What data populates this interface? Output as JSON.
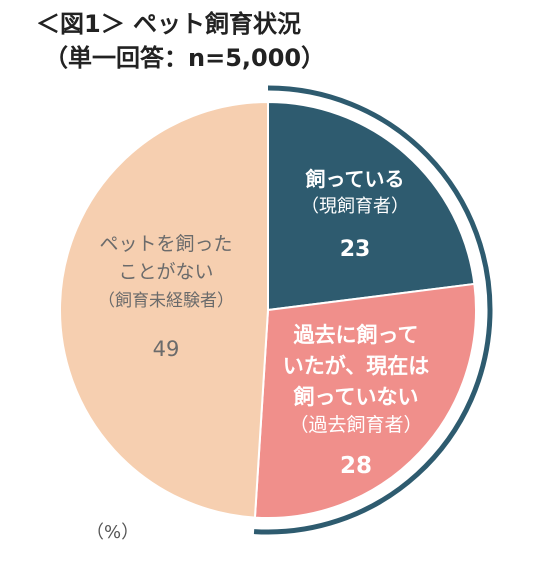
{
  "title": "＜図1＞ ペット飼育状況",
  "subtitle": "（単一回答：n=5,000）",
  "unit": "（%）",
  "chart_data": {
    "type": "pie",
    "title": "＜図1＞ ペット飼育状況",
    "subtitle": "（単一回答：n=5,000）",
    "unit": "%",
    "slices": [
      {
        "name": "飼っている（現飼育者）",
        "label_lines": [
          "飼っている"
        ],
        "sub_label": "（現飼育者）",
        "value": 23,
        "color": "#2e5b6f",
        "text_color": "#ffffff",
        "bold": true
      },
      {
        "name": "過去に飼っていたが、現在は飼っていない（過去飼育者）",
        "label_lines": [
          "過去に飼って",
          "いたが、現在は",
          "飼っていない"
        ],
        "sub_label": "（過去飼育者）",
        "value": 28,
        "color": "#f08f8b",
        "text_color": "#ffffff",
        "bold": true
      },
      {
        "name": "ペットを飼ったことがない（飼育未経験者）",
        "label_lines": [
          "ペットを飼った",
          "ことがない"
        ],
        "sub_label": "（飼育未経験者）",
        "value": 49,
        "color": "#f6cfb0",
        "text_color": "#6b6b6b",
        "bold": false
      }
    ],
    "highlight_ring": {
      "applies_to": [
        "飼っている（現飼育者）",
        "過去に飼っていたが、現在は飼っていない（過去飼育者）"
      ],
      "color": "#2e5b6f"
    }
  }
}
